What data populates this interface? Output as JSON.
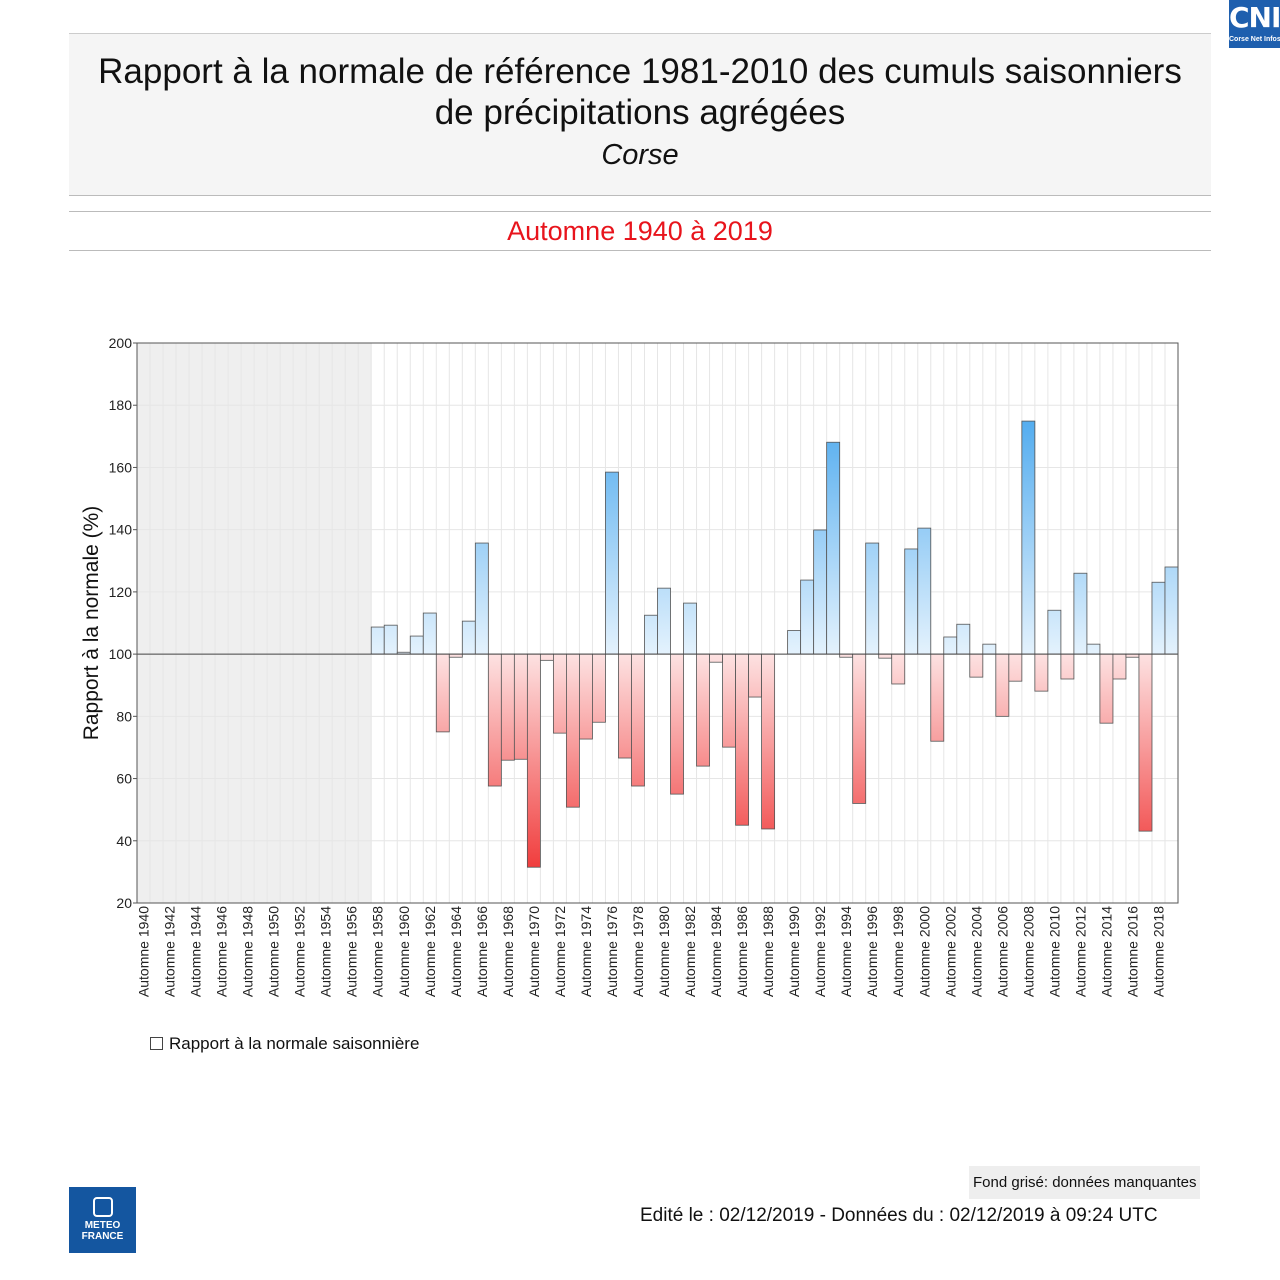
{
  "header": {
    "title_line1": "Rapport à la normale de référence 1981-2010 des cumuls saisonniers",
    "title_line2": "de précipitations agrégées",
    "region": "Corse"
  },
  "subtitle": "Automne 1940 à 2019",
  "logo_cni": {
    "big": "CNI",
    "small": "Corse Net Infos"
  },
  "logo_mf": {
    "line1": "METEO",
    "line2": "FRANCE"
  },
  "legend": {
    "label": "Rapport à la normale saisonnière"
  },
  "footer": {
    "note": "Fond grisé: données manquantes",
    "edited": "Edité le : 02/12/2019 - Données du : 02/12/2019 à 09:24 UTC"
  },
  "colors": {
    "above": "#4aa8ee",
    "below": "#f03a3a"
  },
  "chart_data": {
    "type": "bar",
    "ylabel": "Rapport à la normale (%)",
    "ylim": [
      20,
      200
    ],
    "yticks": [
      20,
      40,
      60,
      80,
      100,
      120,
      140,
      160,
      180,
      200
    ],
    "baseline": 100,
    "missing_range": [
      1940,
      1957
    ],
    "years": [
      1958,
      1959,
      1960,
      1961,
      1962,
      1963,
      1964,
      1965,
      1966,
      1967,
      1968,
      1969,
      1970,
      1971,
      1972,
      1973,
      1974,
      1975,
      1976,
      1977,
      1978,
      1979,
      1980,
      1981,
      1982,
      1983,
      1984,
      1985,
      1986,
      1987,
      1988,
      1989,
      1990,
      1991,
      1992,
      1993,
      1994,
      1995,
      1996,
      1997,
      1998,
      1999,
      2000,
      2001,
      2002,
      2003,
      2004,
      2005,
      2006,
      2007,
      2008,
      2009,
      2010,
      2011,
      2012,
      2013,
      2014,
      2015,
      2016,
      2017,
      2018,
      2019
    ],
    "values": [
      108.7,
      109.3,
      100.6,
      105.8,
      113.2,
      75,
      99,
      110.6,
      135.7,
      57.6,
      65.9,
      66.2,
      31.5,
      98,
      74.6,
      50.8,
      72.7,
      78.1,
      158.5,
      66.6,
      57.6,
      112.5,
      121.2,
      55,
      116.4,
      64,
      97.4,
      70.1,
      45,
      86.2,
      43.8,
      100,
      107.6,
      123.8,
      139.9,
      168.1,
      99,
      52,
      135.7,
      98.7,
      90.4,
      133.8,
      140.5,
      72,
      105.5,
      109.6,
      92.6,
      103.2,
      80,
      91.3,
      174.9,
      88.1,
      114.1,
      92,
      126,
      103.2,
      77.8,
      92,
      99,
      43.1,
      123.1,
      128
    ],
    "xtick_prefix": "Automne",
    "xticks": [
      "Automne 1940",
      "Automne 1942",
      "Automne 1944",
      "Automne 1946",
      "Automne 1948",
      "Automne 1950",
      "Automne 1952",
      "Automne 1954",
      "Automne 1956",
      "Automne 1958",
      "Automne 1960",
      "Automne 1962",
      "Automne 1964",
      "Automne 1966",
      "Automne 1968",
      "Automne 1970",
      "Automne 1972",
      "Automne 1974",
      "Automne 1976",
      "Automne 1978",
      "Automne 1980",
      "Automne 1982",
      "Automne 1984",
      "Automne 1986",
      "Automne 1988",
      "Automne 1990",
      "Automne 1992",
      "Automne 1994",
      "Automne 1996",
      "Automne 1998",
      "Automne 2000",
      "Automne 2002",
      "Automne 2004",
      "Automne 2006",
      "Automne 2008",
      "Automne 2010",
      "Automne 2012",
      "Automne 2014",
      "Automne 2016",
      "Automne 2018"
    ]
  }
}
